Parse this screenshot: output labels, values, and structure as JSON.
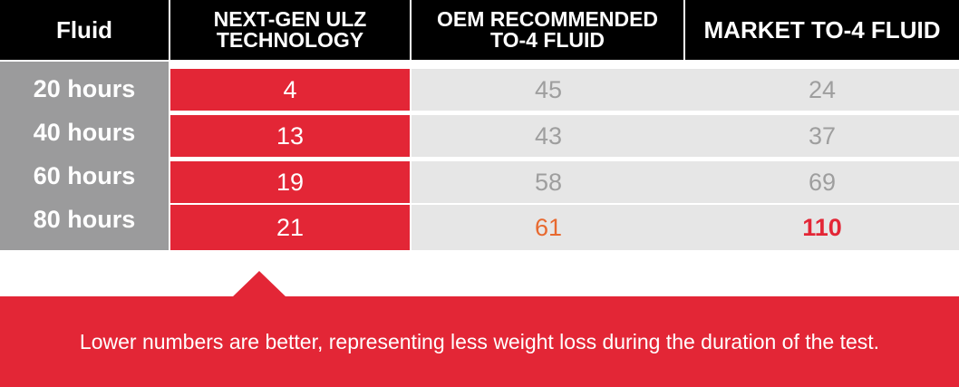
{
  "chart_data": {
    "type": "table",
    "columns": [
      "Fluid",
      "NEXT-GEN ULZ\nTECHNOLOGY",
      "OEM RECOMMENDED\nTO-4 FLUID",
      "MARKET TO-4 FLUID"
    ],
    "header": {
      "col0": "Fluid",
      "col1_line1": "NEXT-GEN ULZ",
      "col1_line2": "TECHNOLOGY",
      "col2_line1": "OEM RECOMMENDED",
      "col2_line2": "TO-4 FLUID",
      "col3": "MARKET TO-4 FLUID"
    },
    "rows": [
      {
        "label": "20 hours",
        "ulz": "4",
        "oem": "45",
        "market": "24"
      },
      {
        "label": "40 hours",
        "ulz": "13",
        "oem": "43",
        "market": "37"
      },
      {
        "label": "60 hours",
        "ulz": "19",
        "oem": "58",
        "market": "69"
      },
      {
        "label": "80 hours",
        "ulz": "21",
        "oem": "61",
        "market": "110"
      }
    ],
    "colors": {
      "header_bg": "#000000",
      "ulz_bg": "#e32636",
      "other_bg": "#e6e6e6",
      "label_bg": "#9b9b9c",
      "oem_highlight": "#e8692f",
      "market_highlight": "#e32636"
    }
  },
  "callout": {
    "text": "Lower numbers are better, representing less weight loss during the duration of the test."
  }
}
